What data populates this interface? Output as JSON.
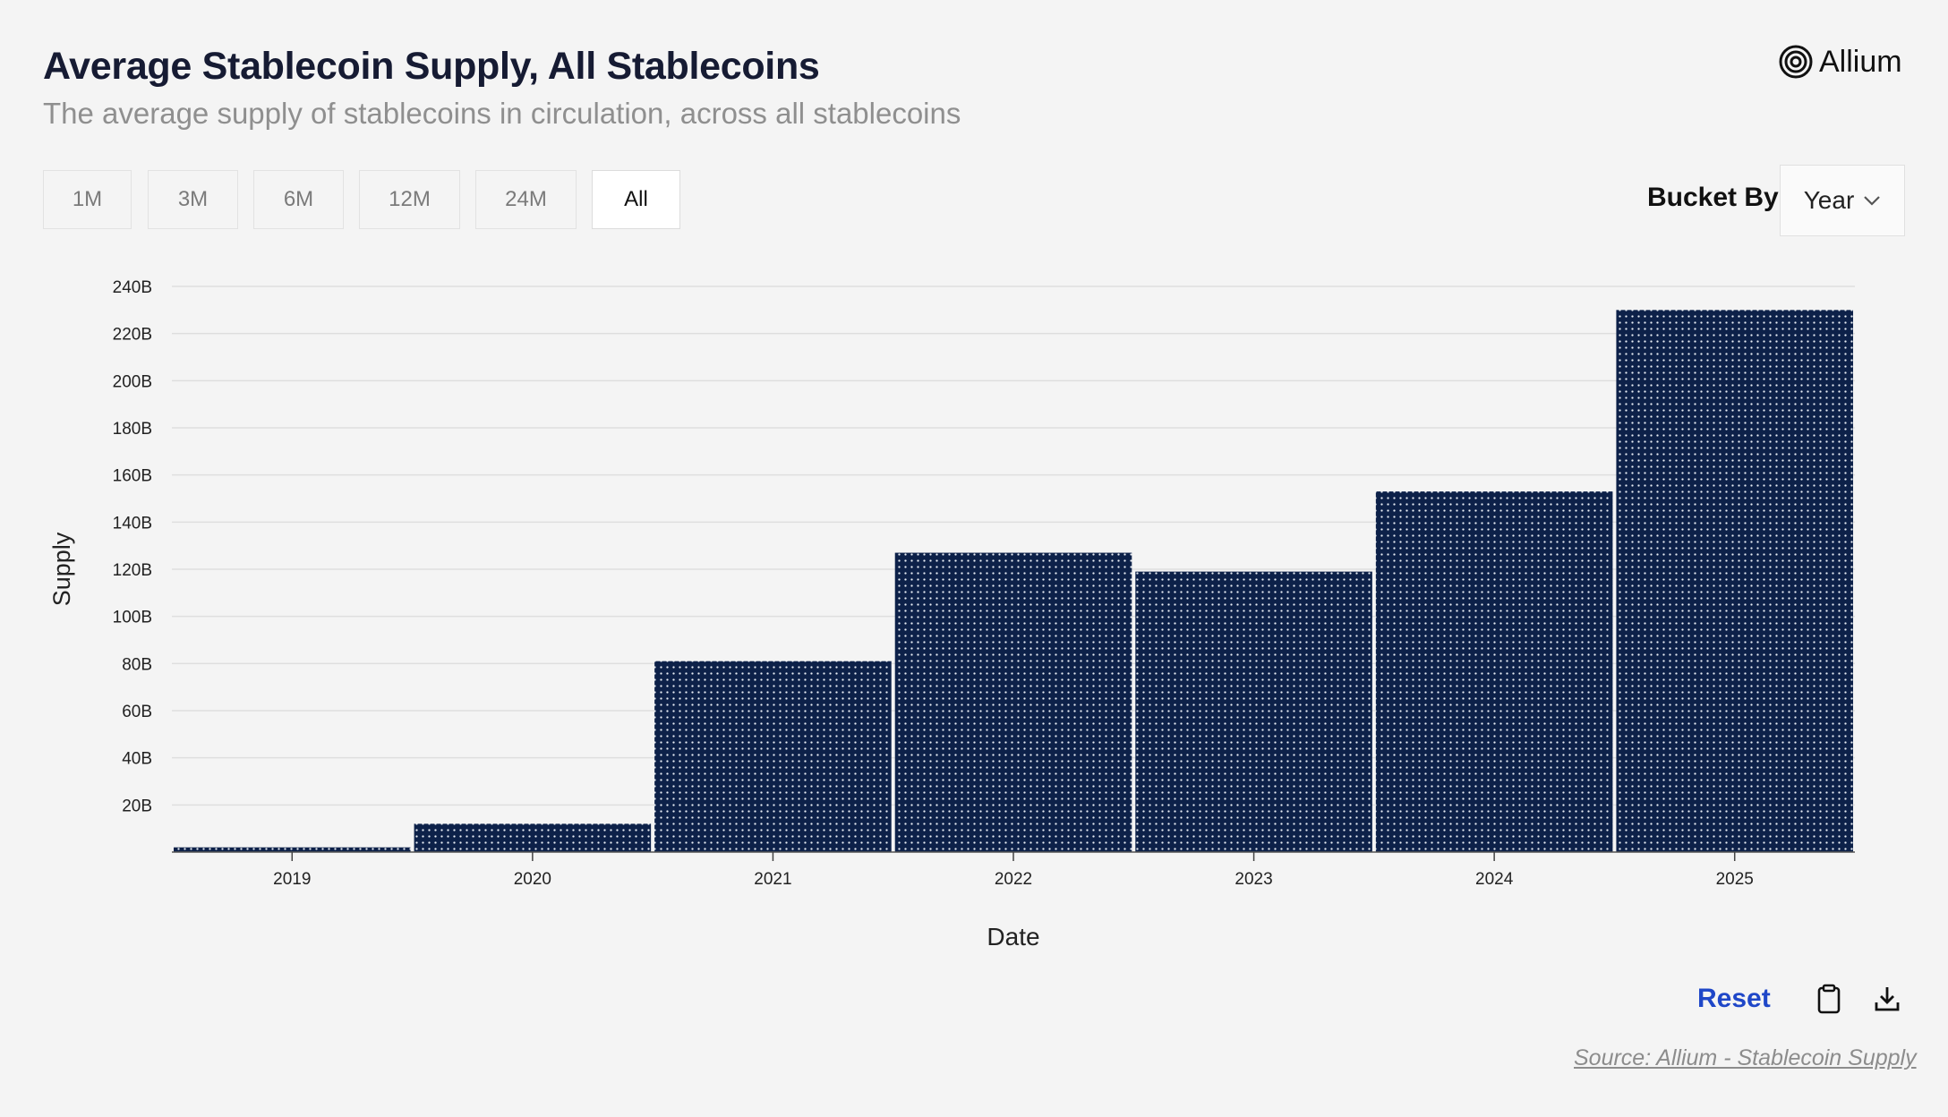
{
  "header": {
    "title": "Average Stablecoin Supply, All Stablecoins",
    "subtitle": "The average supply of stablecoins in circulation, across all stablecoins",
    "logo_text": "Allium"
  },
  "controls": {
    "ranges": [
      "1M",
      "3M",
      "6M",
      "12M",
      "24M",
      "All"
    ],
    "active_range": "All",
    "bucket_label": "Bucket By",
    "bucket_value": "Year"
  },
  "footer": {
    "reset_label": "Reset",
    "source_text": "Source: Allium - Stablecoin Supply",
    "icons": [
      "clipboard-icon",
      "download-icon"
    ]
  },
  "colors": {
    "bar_fill": "#0d2149",
    "bar_dots": "#e8edf5",
    "accent": "#1f47c8"
  },
  "chart_data": {
    "type": "bar",
    "categories": [
      "2019",
      "2020",
      "2021",
      "2022",
      "2023",
      "2024",
      "2025"
    ],
    "values": [
      2,
      12,
      81,
      127,
      119,
      153,
      230
    ],
    "value_unit": "B",
    "xlabel": "Date",
    "ylabel": "Supply",
    "ylim": [
      0,
      240
    ],
    "yticks": [
      "20B",
      "40B",
      "60B",
      "80B",
      "100B",
      "120B",
      "140B",
      "160B",
      "180B",
      "200B",
      "220B",
      "240B"
    ],
    "ytick_values": [
      20,
      40,
      60,
      80,
      100,
      120,
      140,
      160,
      180,
      200,
      220,
      240
    ],
    "grid": true,
    "legend": "none"
  }
}
